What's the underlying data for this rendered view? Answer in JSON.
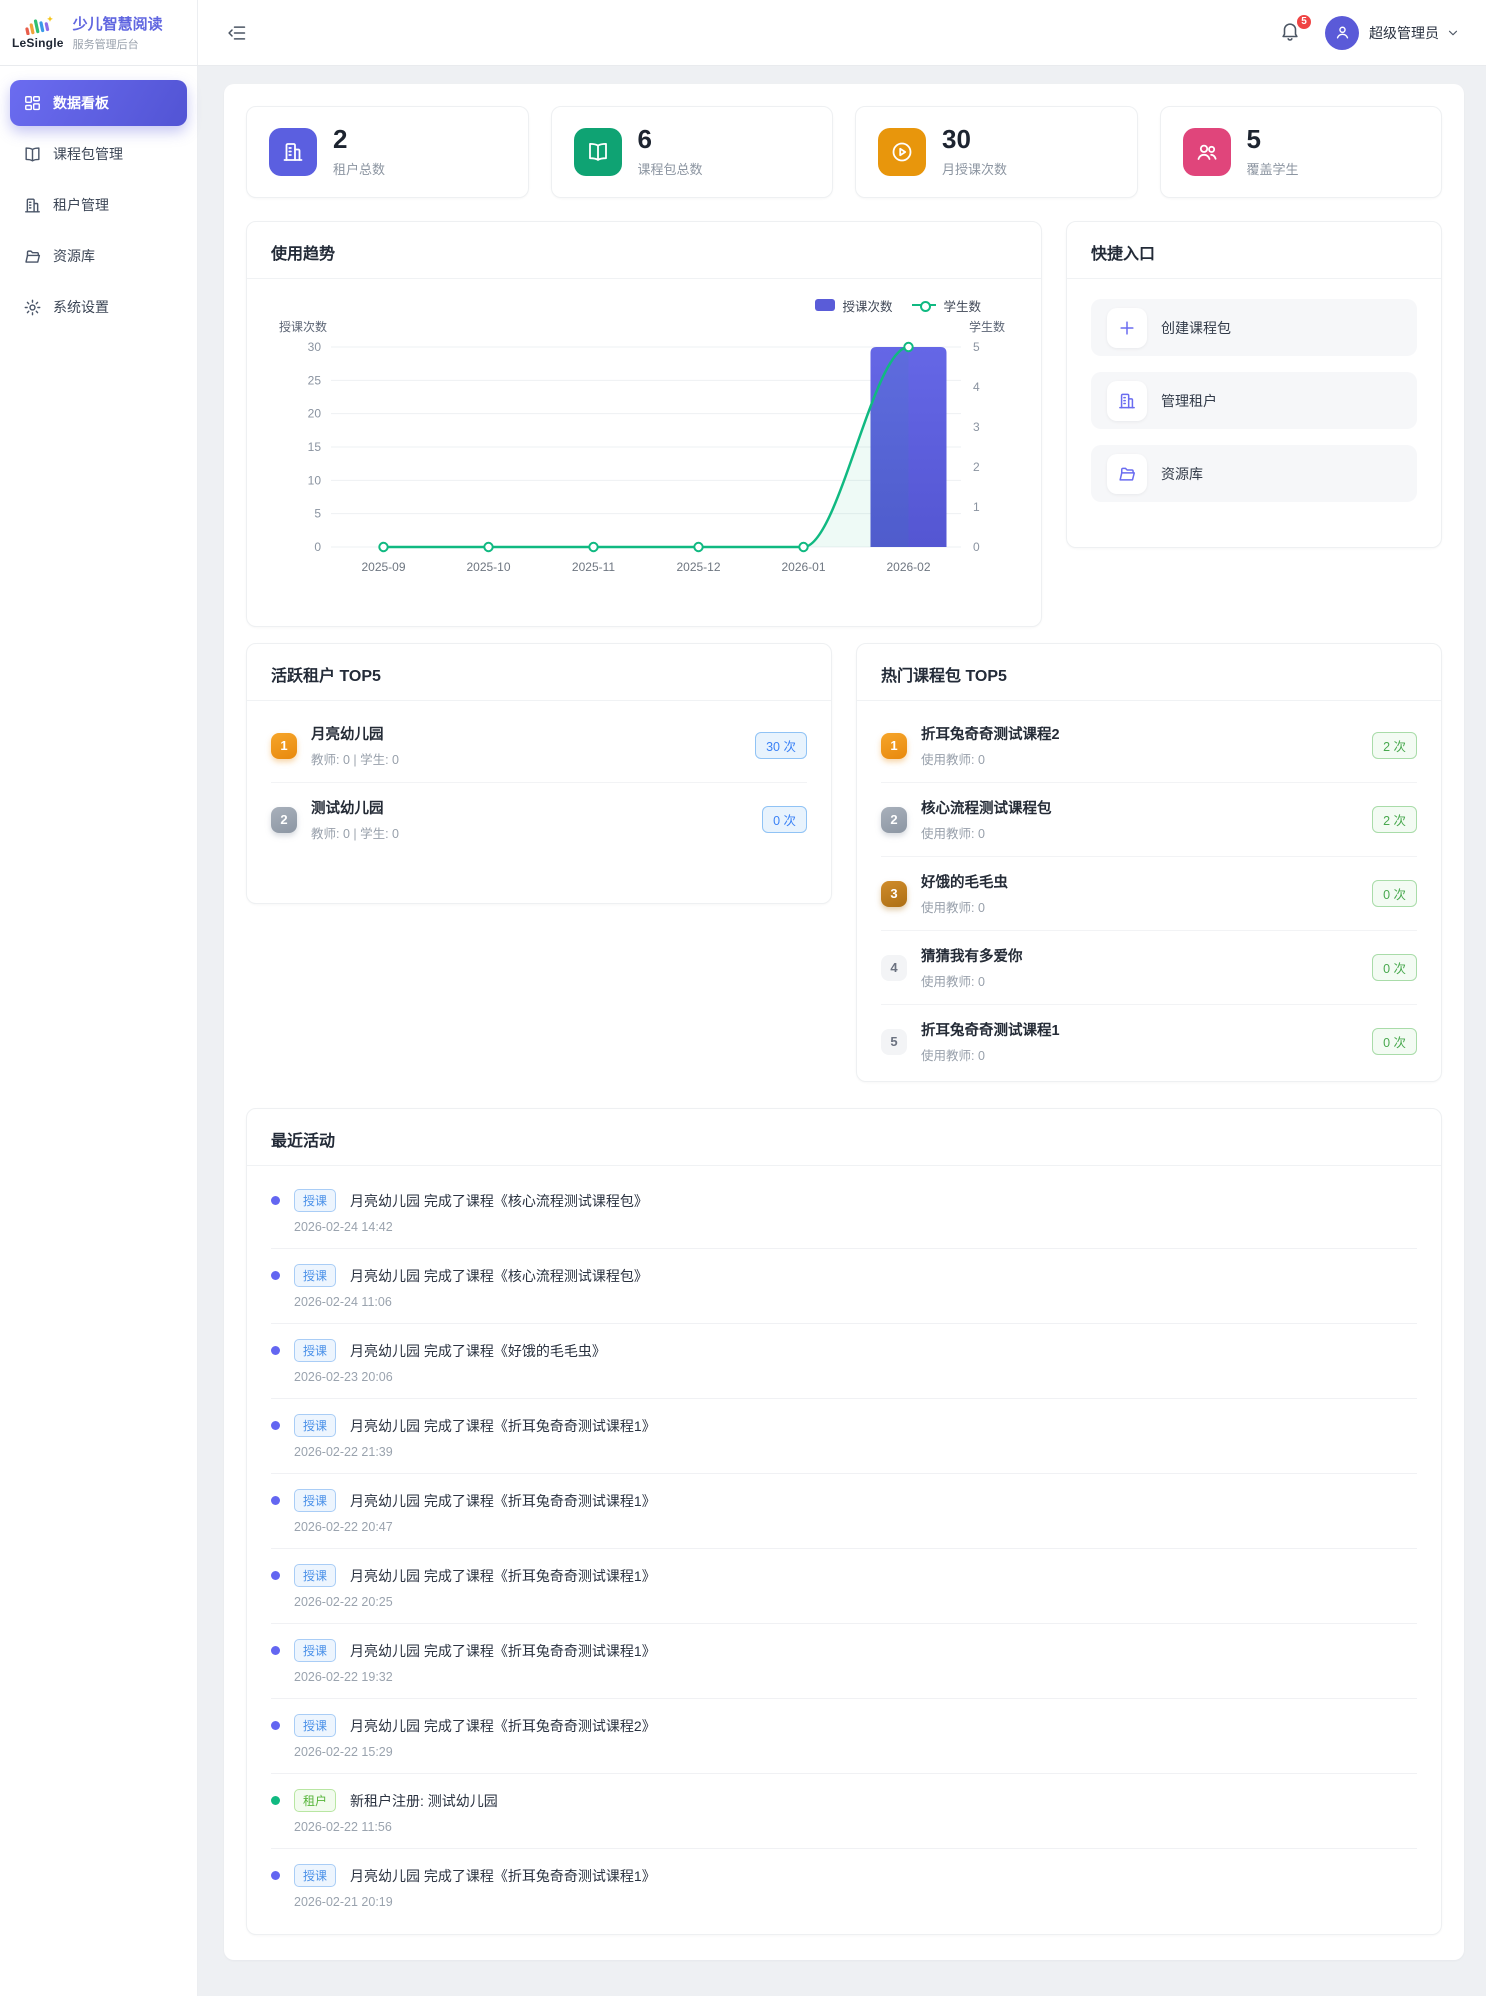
{
  "brand": {
    "name": "LeSingle",
    "title": "少儿智慧阅读",
    "subtitle": "服务管理后台"
  },
  "header": {
    "notification_count": "5",
    "user_name": "超级管理员"
  },
  "colors": {
    "accent": "#5a5cd8",
    "green": "#10b981",
    "orange": "#e8960c",
    "pink": "#e0457b",
    "badge_red": "#ef4444",
    "bar": "#5a5cd8",
    "line": "#10b981"
  },
  "sidebar": {
    "items": [
      {
        "key": "dashboard",
        "label": "数据看板",
        "icon": "dashboard-icon",
        "active": true
      },
      {
        "key": "packages",
        "label": "课程包管理",
        "icon": "book-icon",
        "active": false
      },
      {
        "key": "tenants",
        "label": "租户管理",
        "icon": "building-icon",
        "active": false
      },
      {
        "key": "resources",
        "label": "资源库",
        "icon": "folder-icon",
        "active": false
      },
      {
        "key": "settings",
        "label": "系统设置",
        "icon": "gear-icon",
        "active": false
      }
    ]
  },
  "stats": [
    {
      "key": "tenant-total",
      "value": "2",
      "label": "租户总数",
      "icon": "building-icon",
      "color": "#5b5fe0"
    },
    {
      "key": "package-total",
      "value": "6",
      "label": "课程包总数",
      "icon": "book-icon",
      "color": "#0fa373"
    },
    {
      "key": "monthly-lessons",
      "value": "30",
      "label": "月授课次数",
      "icon": "play-circle-icon",
      "color": "#e8960c"
    },
    {
      "key": "students-covered",
      "value": "5",
      "label": "覆盖学生",
      "icon": "users-icon",
      "color": "#e0457b"
    }
  ],
  "chart_data": {
    "type": "bar+line",
    "title": "使用趋势",
    "categories": [
      "2025-09",
      "2025-10",
      "2025-11",
      "2025-12",
      "2026-01",
      "2026-02"
    ],
    "series": [
      {
        "name": "授课次数",
        "type": "bar",
        "axis": "left",
        "values": [
          0,
          0,
          0,
          0,
          0,
          30
        ],
        "color": "#5a5cd8"
      },
      {
        "name": "学生数",
        "type": "line",
        "axis": "right",
        "values": [
          0,
          0,
          0,
          0,
          0,
          5
        ],
        "color": "#10b981"
      }
    ],
    "left_axis": {
      "label": "授课次数",
      "ticks": [
        0,
        5,
        10,
        15,
        20,
        25,
        30
      ],
      "max": 30
    },
    "right_axis": {
      "label": "学生数",
      "ticks": [
        0,
        1,
        2,
        3,
        4,
        5
      ],
      "max": 5
    },
    "legend_position": "top-right",
    "grid": true
  },
  "quick": {
    "title": "快捷入口",
    "items": [
      {
        "key": "create-package",
        "label": "创建课程包",
        "icon": "plus-icon"
      },
      {
        "key": "manage-tenants",
        "label": "管理租户",
        "icon": "building-icon"
      },
      {
        "key": "resources",
        "label": "资源库",
        "icon": "folder-icon"
      }
    ]
  },
  "active_tenants": {
    "title": "活跃租户 TOP5",
    "items": [
      {
        "rank": "1",
        "name": "月亮幼儿园",
        "meta": "教师: 0 | 学生: 0",
        "count": "30 次"
      },
      {
        "rank": "2",
        "name": "测试幼儿园",
        "meta": "教师: 0 | 学生: 0",
        "count": "0 次"
      }
    ]
  },
  "hot_packages": {
    "title": "热门课程包 TOP5",
    "items": [
      {
        "rank": "1",
        "name": "折耳兔奇奇测试课程2",
        "meta": "使用教师: 0",
        "count": "2 次"
      },
      {
        "rank": "2",
        "name": "核心流程测试课程包",
        "meta": "使用教师: 0",
        "count": "2 次"
      },
      {
        "rank": "3",
        "name": "好饿的毛毛虫",
        "meta": "使用教师: 0",
        "count": "0 次"
      },
      {
        "rank": "4",
        "name": "猜猜我有多爱你",
        "meta": "使用教师: 0",
        "count": "0 次"
      },
      {
        "rank": "5",
        "name": "折耳兔奇奇测试课程1",
        "meta": "使用教师: 0",
        "count": "0 次"
      }
    ]
  },
  "activities": {
    "title": "最近活动",
    "items": [
      {
        "tag": "授课",
        "type": "teach",
        "text": "月亮幼儿园 完成了课程《核心流程测试课程包》",
        "time": "2026-02-24 14:42"
      },
      {
        "tag": "授课",
        "type": "teach",
        "text": "月亮幼儿园 完成了课程《核心流程测试课程包》",
        "time": "2026-02-24 11:06"
      },
      {
        "tag": "授课",
        "type": "teach",
        "text": "月亮幼儿园 完成了课程《好饿的毛毛虫》",
        "time": "2026-02-23 20:06"
      },
      {
        "tag": "授课",
        "type": "teach",
        "text": "月亮幼儿园 完成了课程《折耳兔奇奇测试课程1》",
        "time": "2026-02-22 21:39"
      },
      {
        "tag": "授课",
        "type": "teach",
        "text": "月亮幼儿园 完成了课程《折耳兔奇奇测试课程1》",
        "time": "2026-02-22 20:47"
      },
      {
        "tag": "授课",
        "type": "teach",
        "text": "月亮幼儿园 完成了课程《折耳兔奇奇测试课程1》",
        "time": "2026-02-22 20:25"
      },
      {
        "tag": "授课",
        "type": "teach",
        "text": "月亮幼儿园 完成了课程《折耳兔奇奇测试课程1》",
        "time": "2026-02-22 19:32"
      },
      {
        "tag": "授课",
        "type": "teach",
        "text": "月亮幼儿园 完成了课程《折耳兔奇奇测试课程2》",
        "time": "2026-02-22 15:29"
      },
      {
        "tag": "租户",
        "type": "tenant",
        "text": "新租户注册: 测试幼儿园",
        "time": "2026-02-22 11:56"
      },
      {
        "tag": "授课",
        "type": "teach",
        "text": "月亮幼儿园 完成了课程《折耳兔奇奇测试课程1》",
        "time": "2026-02-21 20:19"
      }
    ]
  }
}
